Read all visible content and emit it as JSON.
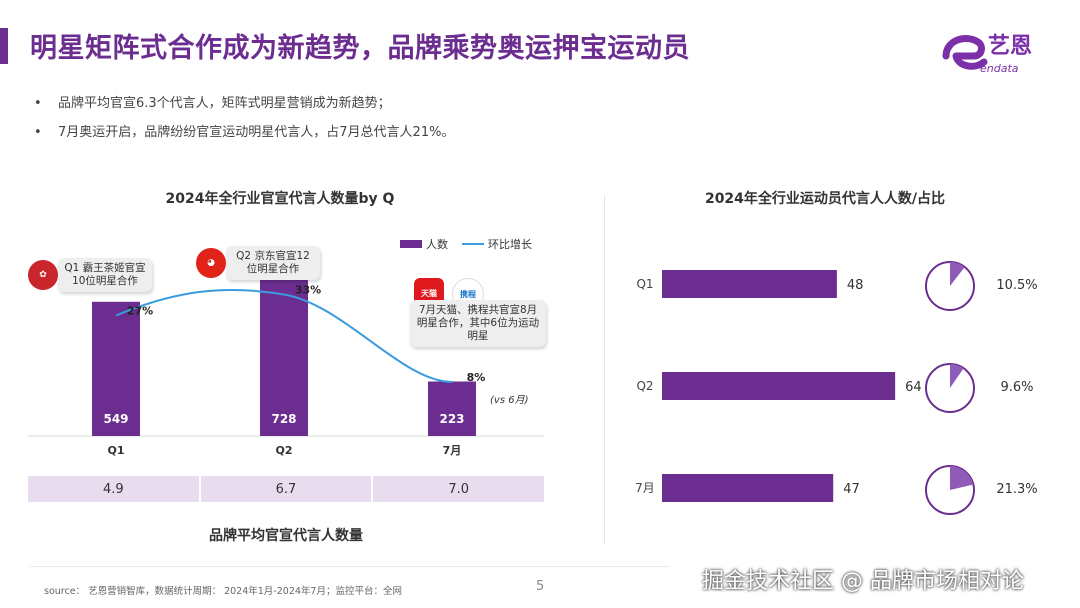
{
  "title": "明星矩阵式合作成为新趋势，品牌乘势奥运押宝运动员",
  "logo": {
    "text": "艺恩",
    "subtext": "endata",
    "color": "#7b2fa8"
  },
  "bullets": [
    "品牌平均官宣6.3个代言人，矩阵式明星营销成为新趋势；",
    "7月奥运开启，品牌纷纷官宣运动明星代言人，占7月总代言人21%。"
  ],
  "colors": {
    "bar": "#6b2d8f",
    "line": "#3a9be0",
    "table": "#e8dcef",
    "pie": "#8e5cb8"
  },
  "left_chart": {
    "legend": {
      "bar": "人数",
      "line": "环比增长"
    },
    "callouts": [
      {
        "text": "Q1 霸王茶姬官宣10位明星合作",
        "icon": "bawang-chaji-logo"
      },
      {
        "text": "Q2 京东官宣12位明星合作",
        "icon": "jd-dog-logo"
      },
      {
        "text": "7月天猫、携程共官宣8月明星合作，其中6位为运动明星",
        "icons": [
          "tmall-logo",
          "ctrip-logo"
        ],
        "icon_labels": [
          "天猫",
          "携程"
        ]
      }
    ],
    "vs_note": "(vs 6月)"
  },
  "avg_table": {
    "values": [
      "4.9",
      "6.7",
      "7.0"
    ],
    "caption": "品牌平均官宣代言人数量"
  },
  "chart_data": [
    {
      "type": "bar",
      "title": "2024年全行业官宣代言人数量by Q",
      "categories": [
        "Q1",
        "Q2",
        "7月"
      ],
      "series": [
        {
          "name": "人数",
          "type": "bar",
          "values": [
            549,
            728,
            223
          ]
        },
        {
          "name": "环比增长",
          "type": "line",
          "values": [
            27,
            33,
            8
          ],
          "labels": [
            "27%",
            "33%",
            "8%"
          ]
        }
      ],
      "ylim": [
        0,
        900
      ],
      "legend": "top-right"
    },
    {
      "type": "bar",
      "orientation": "horizontal",
      "title": "2024年全行业运动员代言人人数/占比",
      "categories": [
        "Q1",
        "Q2",
        "7月"
      ],
      "values": [
        48,
        64,
        47
      ],
      "share": [
        10.5,
        9.6,
        21.3
      ],
      "share_labels": [
        "10.5%",
        "9.6%",
        "21.3%"
      ],
      "xlim": [
        0,
        70
      ]
    }
  ],
  "footer": {
    "source": "source： 艺恩营销智库，数据统计周期： 2024年1月-2024年7月；监控平台：全网",
    "page": "5",
    "watermark": "掘金技术社区 @ 品牌市场相对论"
  }
}
